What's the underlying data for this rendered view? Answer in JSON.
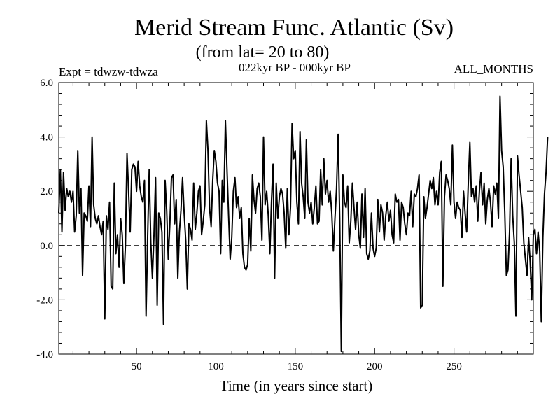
{
  "chart_data": {
    "type": "line",
    "title": "Merid Stream Func. Atlantic (Sv)",
    "subtitle": "(from lat= 20 to 80)",
    "annotations": {
      "left": "Expt = tdwzw-tdwza",
      "center": "022kyr BP - 000kyr BP",
      "right": "ALL_MONTHS"
    },
    "xlabel": "Time (in years since start)",
    "ylabel": "",
    "xlim": [
      1,
      300
    ],
    "ylim": [
      -4.0,
      6.0
    ],
    "x_ticks": [
      50,
      100,
      150,
      200,
      250
    ],
    "y_ticks": [
      -4.0,
      -2.0,
      0.0,
      2.0,
      4.0,
      6.0
    ],
    "x_tick_labels": [
      "50",
      "100",
      "150",
      "200",
      "250"
    ],
    "y_tick_labels": [
      "-4.0",
      "-2.0",
      "0.0",
      "2.0",
      "4.0",
      "6.0"
    ],
    "reference_line": {
      "y": 0.0,
      "style": "dashed"
    },
    "grid": false,
    "series": [
      {
        "x_start": 1,
        "x_step": 1,
        "values": [
          1.2,
          2.8,
          0.5,
          2.7,
          1.3,
          2.1,
          1.8,
          2.0,
          1.6,
          2.0,
          0.5,
          1.1,
          3.5,
          1.2,
          2.1,
          -1.1,
          1.2,
          1.1,
          0.9,
          2.2,
          0.7,
          4.0,
          1.5,
          1.0,
          0.8,
          1.1,
          0.7,
          0.4,
          0.9,
          -2.7,
          1.1,
          0.6,
          1.6,
          -1.5,
          -1.6,
          2.3,
          -0.3,
          0.4,
          -0.8,
          1.0,
          0.4,
          -1.4,
          0.0,
          3.4,
          2.0,
          0.5,
          2.8,
          3.0,
          2.9,
          2.0,
          3.1,
          2.2,
          1.8,
          1.6,
          2.4,
          -2.6,
          0.3,
          2.8,
          0.1,
          -1.2,
          0.4,
          2.5,
          -2.2,
          1.2,
          1.0,
          0.5,
          -2.9,
          2.4,
          1.3,
          -0.5,
          0.8,
          2.5,
          2.6,
          0.8,
          1.7,
          -1.2,
          0.5,
          1.3,
          2.5,
          1.2,
          0.2,
          -1.6,
          0.8,
          0.6,
          0.2,
          2.3,
          0.6,
          1.2,
          2.0,
          2.2,
          0.4,
          0.9,
          1.5,
          4.6,
          3.5,
          1.4,
          0.7,
          2.4,
          3.5,
          3.1,
          2.3,
          2.0,
          -0.3,
          2.4,
          1.6,
          4.6,
          2.8,
          1.1,
          -0.5,
          0.3,
          2.0,
          2.5,
          1.4,
          1.8,
          1.0,
          1.4,
          -0.3,
          -0.8,
          -0.9,
          -0.7,
          1.0,
          -0.2,
          2.6,
          1.7,
          1.2,
          2.1,
          2.3,
          1.8,
          0.2,
          4.0,
          1.5,
          2.0,
          1.1,
          -0.3,
          1.6,
          3.0,
          -1.2,
          2.3,
          1.0,
          1.8,
          2.1,
          1.9,
          1.2,
          -0.1,
          2.1,
          0.4,
          1.4,
          4.5,
          3.2,
          3.5,
          1.6,
          0.8,
          4.2,
          2.3,
          1.8,
          1.0,
          3.9,
          1.6,
          1.2,
          1.6,
          0.8,
          1.4,
          2.2,
          0.8,
          0.9,
          2.8,
          1.5,
          3.2,
          1.9,
          2.4,
          1.6,
          2.0,
          1.2,
          -0.2,
          1.0,
          2.1,
          4.1,
          1.0,
          -3.9,
          2.6,
          1.6,
          1.4,
          2.2,
          0.1,
          0.9,
          2.3,
          1.4,
          0.6,
          1.6,
          0.4,
          -0.1,
          1.9,
          0.3,
          2.1,
          -0.3,
          -0.5,
          -0.2,
          1.2,
          -0.1,
          -0.4,
          -0.1,
          1.7,
          0.5,
          1.5,
          1.2,
          0.2,
          1.1,
          1.6,
          0.9,
          1.3,
          0.4,
          0.1,
          1.9,
          1.6,
          1.7,
          0.2,
          1.6,
          1.4,
          0.8,
          0.4,
          1.2,
          1.1,
          2.0,
          0.7,
          1.9,
          1.8,
          2.1,
          2.6,
          -2.3,
          -2.2,
          1.8,
          1.0,
          1.4,
          1.9,
          2.4,
          2.1,
          2.5,
          1.5,
          2.0,
          1.5,
          2.7,
          3.1,
          -1.5,
          1.8,
          2.6,
          2.4,
          2.1,
          1.5,
          3.7,
          1.6,
          1.0,
          1.6,
          1.4,
          1.3,
          0.3,
          2.0,
          1.2,
          0.5,
          2.3,
          3.8,
          1.8,
          2.1,
          1.6,
          2.2,
          0.9,
          2.0,
          2.7,
          1.5,
          2.3,
          0.8,
          1.7,
          2.1,
          1.6,
          0.7,
          2.2,
          1.9,
          2.3,
          1.0,
          5.5,
          3.5,
          2.9,
          1.2,
          -1.1,
          -0.9,
          0.5,
          3.2,
          1.1,
          0.1,
          -2.6,
          3.3,
          2.6,
          2.0,
          1.4,
          0.1,
          -0.5,
          -1.1,
          0.3,
          -0.6,
          -2.0,
          0.4,
          0.6,
          -0.3,
          0.5,
          -0.2,
          -2.8,
          0.3,
          1.9,
          2.7,
          4.0
        ]
      }
    ]
  }
}
